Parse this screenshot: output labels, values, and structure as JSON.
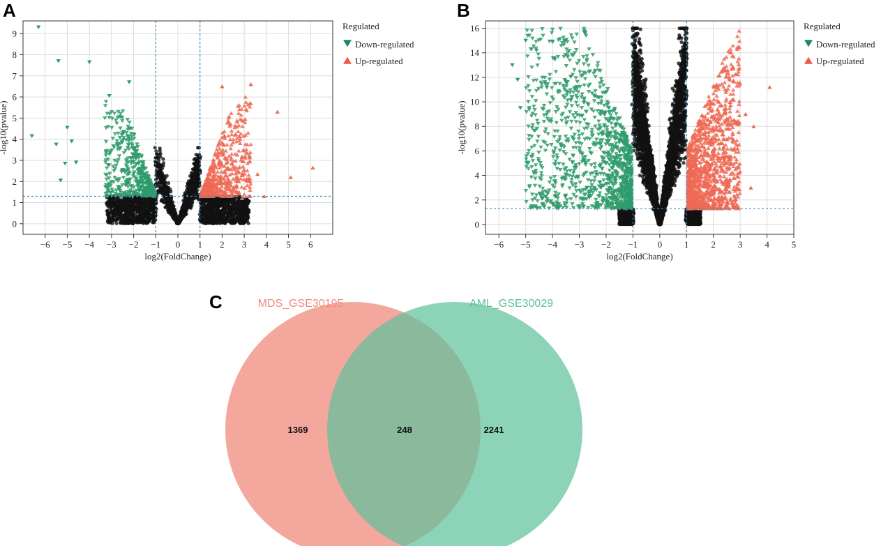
{
  "colors": {
    "down": "#2e9b6b",
    "up": "#ee6a55",
    "ns": "#111111",
    "threshold": "#3a8fc4",
    "grid": "#dcdcdc",
    "venn_left": "#ef8a7c",
    "venn_right": "#5cc19a",
    "venn_left_label": "#ef8a7c",
    "venn_right_label": "#5cc19a"
  },
  "chart_data": [
    {
      "panel": "A",
      "type": "scatter",
      "xlabel": "log2(FoldChange)",
      "ylabel": "-log10(pvalue)",
      "xlim": [
        -7,
        7
      ],
      "ylim": [
        -0.5,
        9.6
      ],
      "xticks": [
        "-6",
        "-5",
        "-4",
        "-3",
        "-2",
        "-1",
        "0",
        "1",
        "2",
        "3",
        "4",
        "5",
        "6"
      ],
      "yticks": [
        "0",
        "1",
        "2",
        "3",
        "4",
        "5",
        "6",
        "7",
        "8",
        "9"
      ],
      "thresholds": {
        "x": [
          -1,
          1
        ],
        "y": 1.3
      },
      "legend": {
        "title": "Regulated",
        "items": [
          "Down-regulated",
          "Up-regulated"
        ]
      },
      "outliers_down": [
        [
          -6.3,
          9.3
        ],
        [
          -5.4,
          7.7
        ],
        [
          -4.0,
          7.65
        ],
        [
          -6.6,
          4.15
        ],
        [
          -5.5,
          3.75
        ],
        [
          -5.1,
          2.85
        ],
        [
          -4.6,
          2.9
        ],
        [
          -5.3,
          2.05
        ],
        [
          -5.0,
          4.55
        ],
        [
          -2.2,
          6.7
        ],
        [
          -3.1,
          6.05
        ],
        [
          -4.8,
          3.9
        ]
      ],
      "outliers_up": [
        [
          6.1,
          2.65
        ],
        [
          5.1,
          2.2
        ],
        [
          4.5,
          5.3
        ],
        [
          3.3,
          6.6
        ],
        [
          2.0,
          6.5
        ],
        [
          3.6,
          2.35
        ],
        [
          3.9,
          1.3
        ],
        [
          2.9,
          1.2
        ]
      ]
    },
    {
      "panel": "B",
      "type": "scatter",
      "xlabel": "log2(FoldChange)",
      "ylabel": "-log10(pvalue)",
      "xlim": [
        -6.5,
        5
      ],
      "ylim": [
        -0.8,
        16.6
      ],
      "xticks": [
        "-6",
        "-5",
        "-4",
        "-3",
        "-2",
        "-1",
        "0",
        "1",
        "2",
        "3",
        "4",
        "5"
      ],
      "yticks": [
        "0",
        "2",
        "4",
        "6",
        "8",
        "10",
        "12",
        "14",
        "16"
      ],
      "thresholds": {
        "x": [
          -1,
          1
        ],
        "y": 1.3
      },
      "legend": {
        "title": "Regulated",
        "items": [
          "Down-regulated",
          "Up-regulated"
        ]
      },
      "outliers_down": [
        [
          -5.2,
          9.5
        ],
        [
          -5.5,
          13.0
        ],
        [
          -5.0,
          15.0
        ],
        [
          -4.6,
          14.2
        ],
        [
          -5.3,
          11.8
        ]
      ],
      "outliers_up": [
        [
          4.1,
          11.2
        ],
        [
          3.5,
          8.0
        ],
        [
          3.4,
          3.0
        ],
        [
          3.2,
          9.0
        ],
        [
          2.9,
          6.2
        ],
        [
          2.8,
          1.4
        ]
      ]
    },
    {
      "panel": "C",
      "type": "venn",
      "sets": [
        {
          "name": "MDS_GSE30195",
          "only": 1369
        },
        {
          "name": "AML_GSE30029",
          "only": 2241
        }
      ],
      "intersection": 248
    }
  ],
  "venn_text": {
    "left_label": "MDS_GSE30195",
    "right_label": "AML_GSE30029",
    "left_count": "1369",
    "intersection_count": "248",
    "right_count": "2241"
  }
}
